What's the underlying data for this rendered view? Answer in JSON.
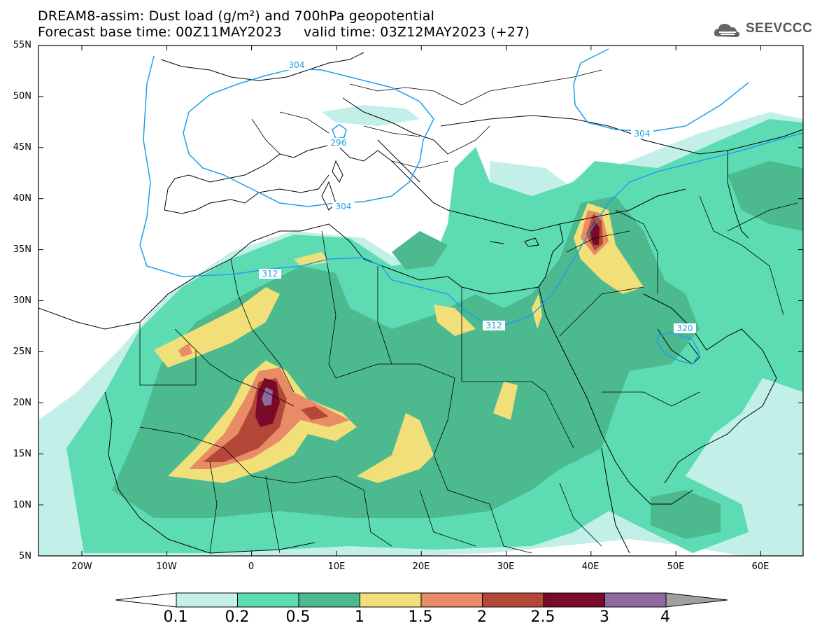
{
  "header": {
    "title_line1": "DREAM8-assim: Dust load (g/m²) and 700hPa geopotential",
    "title_line2": "Forecast base time: 00Z11MAY2023     valid time: 03Z12MAY2023 (+27)",
    "logo_text": "SEEVCCC"
  },
  "map": {
    "lat_labels": [
      "55N",
      "50N",
      "45N",
      "40N",
      "35N",
      "30N",
      "25N",
      "20N",
      "15N",
      "10N",
      "5N"
    ],
    "lon_labels": [
      "20W",
      "10W",
      "0",
      "10E",
      "20E",
      "30E",
      "40E",
      "50E",
      "60E"
    ],
    "contour_labels": [
      "304",
      "296",
      "304",
      "304",
      "312",
      "312",
      "320"
    ],
    "colors": {
      "c1": "#c2f0e8",
      "c2": "#5ddcb4",
      "c3": "#4cb98f",
      "c4": "#f1e07a",
      "c5": "#e98b66",
      "c6": "#b34838",
      "c7": "#7a0a2a",
      "c8": "#8f6aa3",
      "contour": "#1ea0e6",
      "border": "#000000"
    }
  },
  "colorbar": {
    "labels": [
      "0.1",
      "0.2",
      "0.5",
      "1",
      "1.5",
      "2",
      "2.5",
      "3",
      "4"
    ],
    "colors": [
      "#c2f0e8",
      "#5ddcb4",
      "#4cb98f",
      "#f1e07a",
      "#e98b66",
      "#b34838",
      "#7a0a2a",
      "#8f6aa3"
    ],
    "under_color": "#ffffff",
    "over_color": "#a0a0a0"
  }
}
